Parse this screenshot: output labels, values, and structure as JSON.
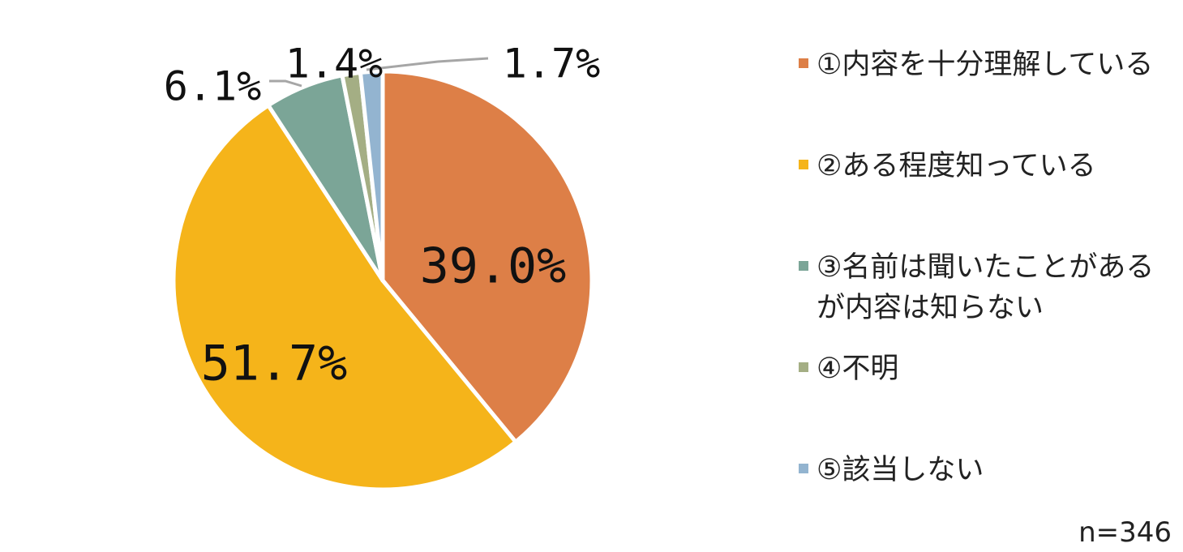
{
  "chart_data": {
    "type": "pie",
    "title": "",
    "categories": [
      "①内容を十分理解している",
      "②ある程度知っている",
      "③名前は聞いたことがあるが内容は知らない",
      "④不明",
      "⑤該当しない"
    ],
    "values": [
      39.0,
      51.7,
      6.1,
      1.4,
      1.7
    ],
    "labels": [
      "39.0%",
      "51.7%",
      "6.1%",
      "1.4%",
      "1.7%"
    ],
    "colors": [
      "#DD7F47",
      "#F5B41A",
      "#7BA597",
      "#A4AE84",
      "#93B4D0"
    ],
    "start_angle": "12 o'clock",
    "direction": "clockwise",
    "legend_position": "right"
  },
  "legend": {
    "items": [
      {
        "text": "①内容を十分理解している"
      },
      {
        "text": "②ある程度知っている"
      },
      {
        "text": "③名前は聞いたことがあるが内容は知らない"
      },
      {
        "text": "④不明"
      },
      {
        "text": "⑤該当しない"
      }
    ]
  },
  "sample_size": "n=346"
}
